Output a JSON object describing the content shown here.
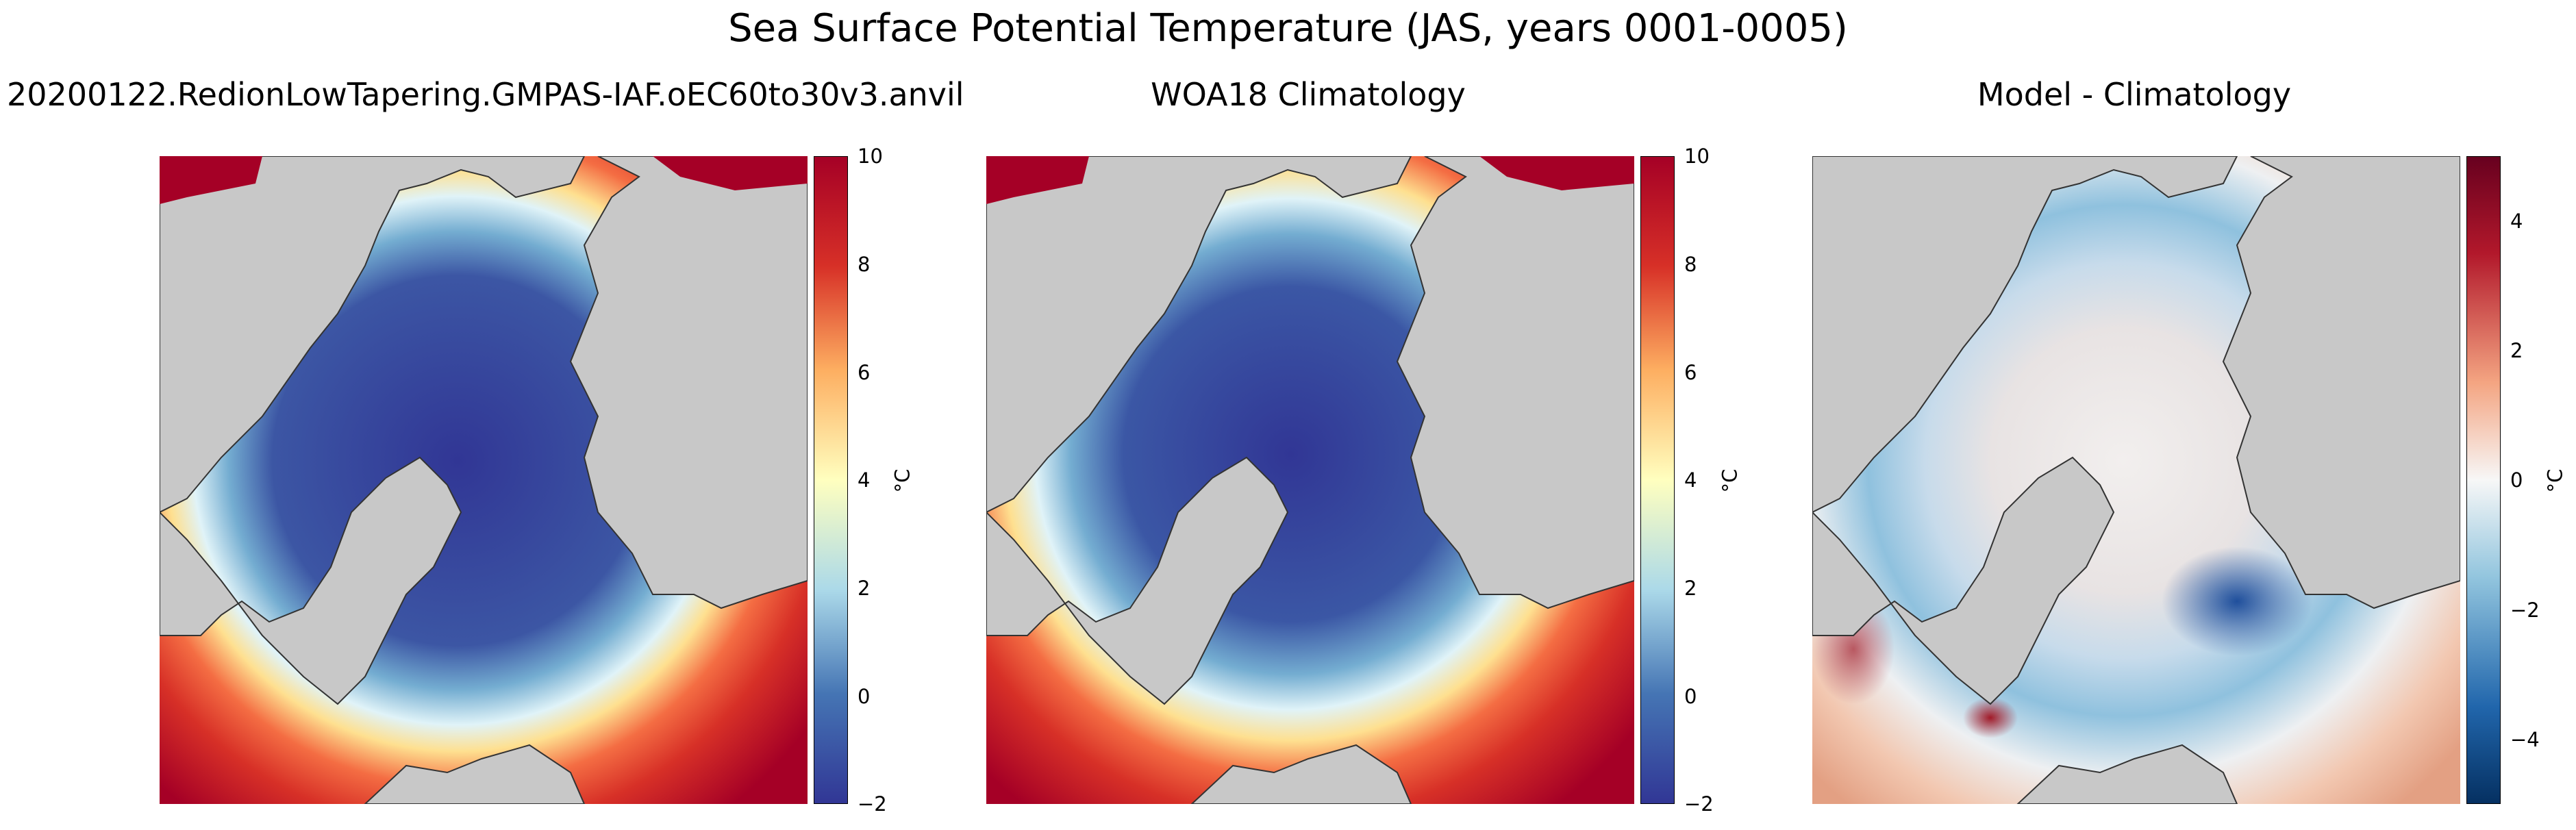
{
  "figure_title": "Sea Surface Potential Temperature (JAS, years 0001-0005)",
  "panels": [
    {
      "title": "20200122.RedionLowTapering.GMPAS-IAF.oEC60to30v3.anvil",
      "colorbar": {
        "label": "°C",
        "min": -2,
        "max": 10,
        "ticks": [
          "−2",
          "0",
          "2",
          "4",
          "6",
          "8",
          "10"
        ],
        "colormap": "RdYlBu_r"
      }
    },
    {
      "title": "WOA18 Climatology",
      "colorbar": {
        "label": "°C",
        "min": -2,
        "max": 10,
        "ticks": [
          "−2",
          "0",
          "2",
          "4",
          "6",
          "8",
          "10"
        ],
        "colormap": "RdYlBu_r"
      }
    },
    {
      "title": "Model - Climatology",
      "colorbar": {
        "label": "°C",
        "min": -5,
        "max": 5,
        "ticks": [
          "−4",
          "−2",
          "0",
          "2",
          "4"
        ],
        "colormap": "RdBu_r"
      }
    }
  ],
  "colors": {
    "land": "#c8c8c8",
    "coastline": "#333333"
  }
}
